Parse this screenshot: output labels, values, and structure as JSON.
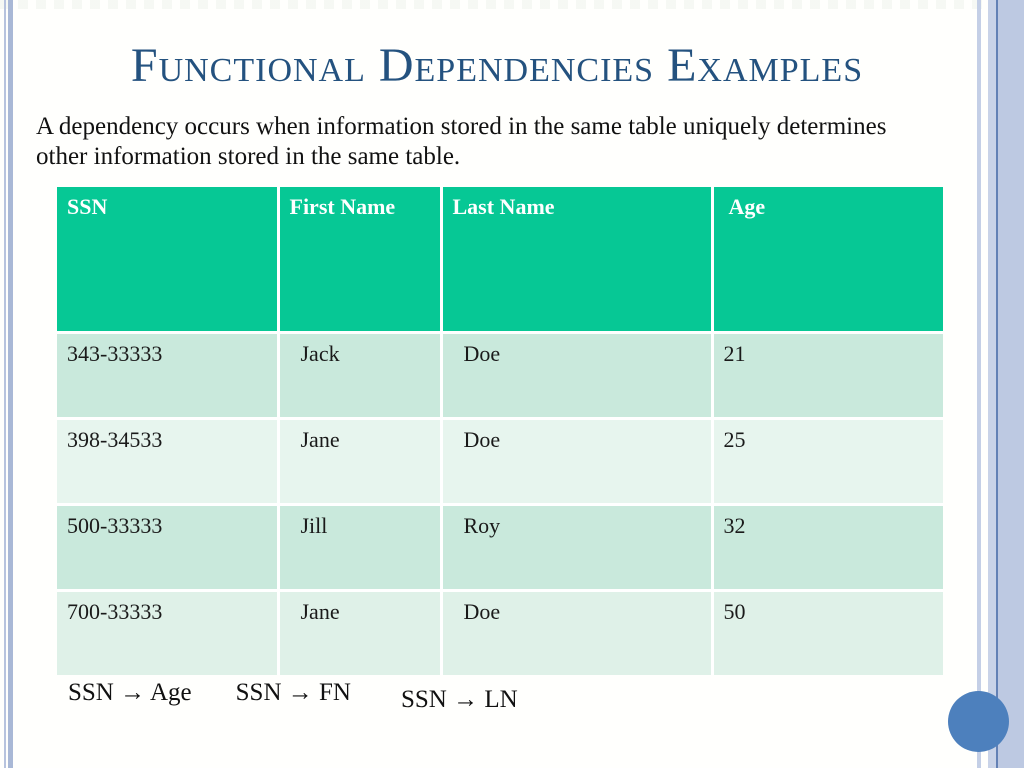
{
  "slide": {
    "title": "Functional Dependencies Examples",
    "description": "A dependency occurs when information stored in the same table uniquely determines other information stored in the same table.",
    "table": {
      "headers": [
        "SSN",
        "First Name",
        "Last Name",
        "Age"
      ],
      "rows": [
        [
          "343-33333",
          "Jack",
          "Doe",
          "21"
        ],
        [
          "398-34533",
          "Jane",
          "Doe",
          "25"
        ],
        [
          "500-33333",
          "Jill",
          "Roy",
          "32"
        ],
        [
          "700-33333",
          "Jane",
          "Doe",
          "50"
        ]
      ]
    },
    "dependencies": [
      "SSN → Age",
      "SSN → FN",
      "SSN → LN"
    ],
    "colors": {
      "title_text": "#24527f",
      "table_header_bg": "#06c895",
      "table_header_text": "#ffffff",
      "row_dark": "#c9e9dc",
      "row_light": "#e7f5ee",
      "accent_circle": "#4d80bd",
      "edge_stripe_light": "#b7c3de",
      "edge_stripe_band": "#bdc9e2",
      "edge_stripe_dark_line": "#6381b5"
    }
  }
}
